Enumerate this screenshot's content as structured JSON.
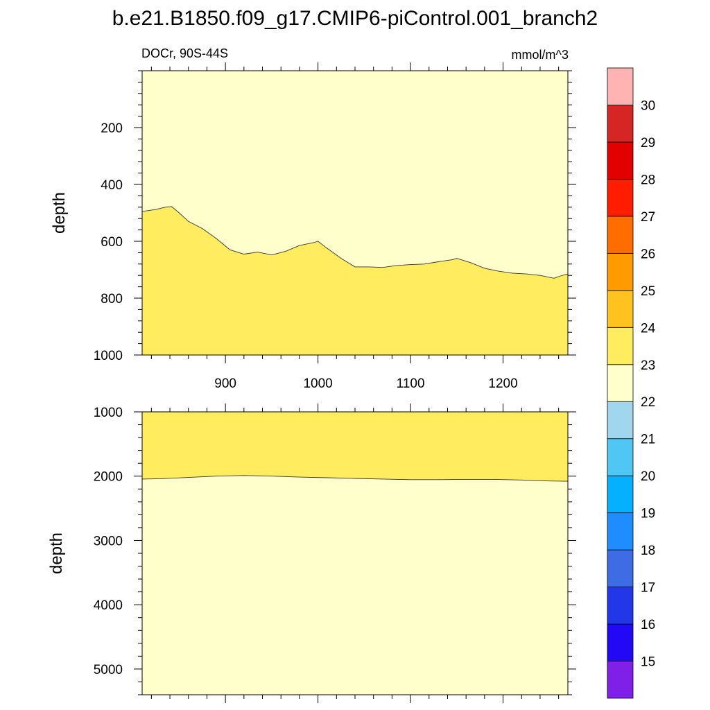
{
  "chart_data": {
    "type": "heatmap",
    "title": "b.e21.B1850.f09_g17.CMIP6-piControl.001_branch2",
    "left_string": "DOCr, 90S-44S",
    "right_string": "mmol/m^3",
    "xlabel": "",
    "xlim": [
      810,
      1270
    ],
    "x_ticks": [
      900,
      1000,
      1100,
      1200
    ],
    "colorbar": {
      "levels": [
        15,
        16,
        17,
        18,
        19,
        20,
        21,
        22,
        23,
        24,
        25,
        26,
        27,
        28,
        29,
        30
      ],
      "colors": [
        "#7f1fe8",
        "#2208f4",
        "#2238e8",
        "#3d6ce4",
        "#1f8cff",
        "#05b1ff",
        "#4fc6f4",
        "#a0d6ee",
        "#ffffcc",
        "#ffec5f",
        "#ffc21e",
        "#ff9a00",
        "#ff6c00",
        "#ff1d00",
        "#e30000",
        "#d52525",
        "#ffb3b3"
      ]
    },
    "panels": [
      {
        "ylabel": "depth",
        "ylim": [
          1000,
          0
        ],
        "y_ticks": [
          200,
          400,
          600,
          800,
          1000
        ],
        "fill_above": "22-23",
        "fill_below": "23-24",
        "contour_level": 23,
        "boundary": {
          "x": [
            810,
            825,
            835,
            842,
            850,
            860,
            875,
            890,
            905,
            920,
            935,
            950,
            965,
            980,
            995,
            1000,
            1010,
            1025,
            1040,
            1055,
            1070,
            1085,
            1100,
            1115,
            1130,
            1145,
            1150,
            1165,
            1180,
            1195,
            1210,
            1225,
            1240,
            1255,
            1262,
            1270
          ],
          "y": [
            495,
            488,
            480,
            478,
            500,
            530,
            555,
            590,
            630,
            645,
            638,
            648,
            635,
            615,
            605,
            600,
            625,
            660,
            690,
            690,
            692,
            685,
            682,
            680,
            672,
            665,
            660,
            675,
            695,
            705,
            712,
            715,
            720,
            730,
            722,
            715
          ]
        }
      },
      {
        "ylabel": "depth",
        "ylim": [
          5400,
          1000
        ],
        "y_ticks": [
          1000,
          2000,
          3000,
          4000,
          5000
        ],
        "fill_above": "23-24",
        "fill_below": "22-23",
        "contour_level": 23,
        "boundary": {
          "x": [
            810,
            830,
            860,
            890,
            920,
            950,
            980,
            1010,
            1040,
            1070,
            1100,
            1130,
            1160,
            1190,
            1220,
            1250,
            1270
          ],
          "y": [
            2045,
            2040,
            2020,
            2000,
            1990,
            2000,
            2015,
            2025,
            2035,
            2045,
            2055,
            2055,
            2050,
            2050,
            2060,
            2075,
            2080
          ]
        }
      }
    ]
  }
}
